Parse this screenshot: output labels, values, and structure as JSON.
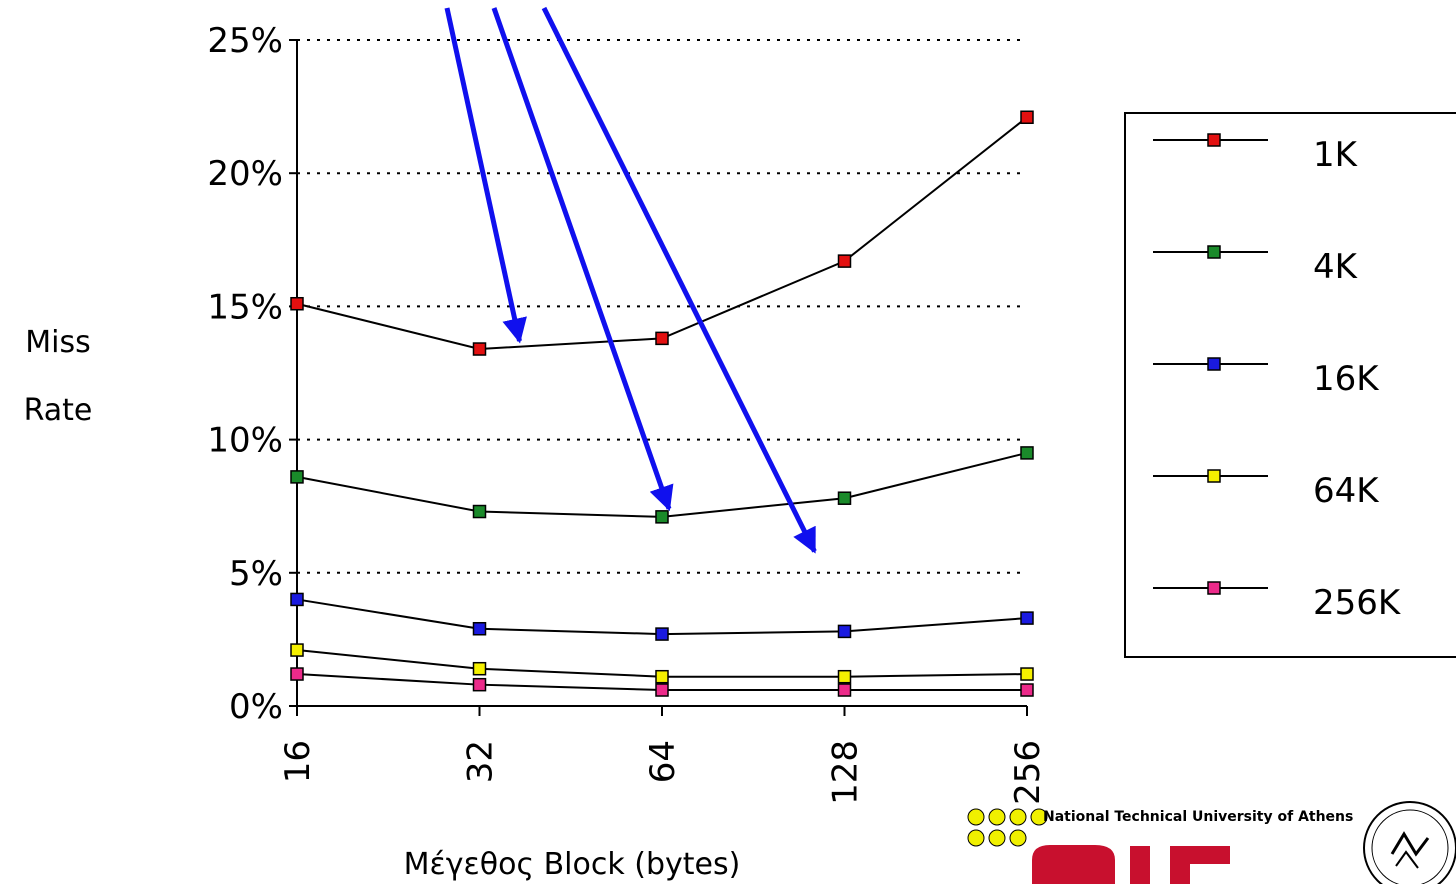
{
  "chart_data": {
    "type": "line",
    "ylabel_lines": [
      "Miss",
      "Rate"
    ],
    "xlabel": "Μέγεθος Block (bytes)",
    "categories": [
      "16",
      "32",
      "64",
      "128",
      "256"
    ],
    "y_ticks": [
      "0%",
      "5%",
      "10%",
      "15%",
      "20%",
      "25%"
    ],
    "ylim": [
      0,
      25
    ],
    "y_unit": "%",
    "grid": "horizontal dotted",
    "legend_position": "right",
    "series": [
      {
        "name": "1K",
        "color": "#e31010",
        "values": [
          15.1,
          13.4,
          13.8,
          16.7,
          22.1
        ]
      },
      {
        "name": "4K",
        "color": "#1a8a2a",
        "values": [
          8.6,
          7.3,
          7.1,
          7.8,
          9.5
        ]
      },
      {
        "name": "16K",
        "color": "#1a1ae0",
        "values": [
          4.0,
          2.9,
          2.7,
          2.8,
          3.3
        ]
      },
      {
        "name": "64K",
        "color": "#f5f000",
        "values": [
          2.1,
          1.4,
          1.1,
          1.1,
          1.2
        ]
      },
      {
        "name": "256K",
        "color": "#ec2a8a",
        "values": [
          1.2,
          0.8,
          0.6,
          0.6,
          0.6
        ]
      }
    ],
    "annotations": {
      "arrow_color": "#1010ee",
      "arrows": [
        {
          "points_to_series": "1K",
          "points_to_category": "32"
        },
        {
          "points_to_series": "4K",
          "points_to_category": "64"
        },
        {
          "points_to_series": "16K",
          "points_to_category": "128"
        }
      ]
    }
  },
  "logo": {
    "text": "National Technical University of Athens",
    "dot_color": "#f0f000",
    "brand_color": "#c8102e"
  }
}
